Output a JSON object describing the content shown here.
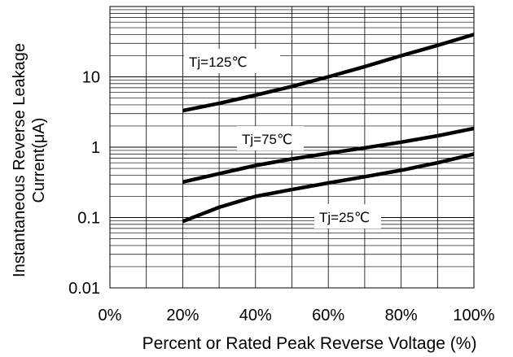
{
  "chart_data": {
    "type": "line",
    "xlabel": "Percent or Rated Peak Reverse Voltage (%)",
    "ylabel_line1": "Instantaneous Reverse Leakage",
    "ylabel_line2": "Current(μA)",
    "xlim": [
      0,
      100
    ],
    "ylim": [
      0.01,
      100
    ],
    "y_scale": "log",
    "grid": true,
    "x_ticks": [
      {
        "value": 0,
        "label": "0%"
      },
      {
        "value": 20,
        "label": "20%"
      },
      {
        "value": 40,
        "label": "40%"
      },
      {
        "value": 60,
        "label": "60%"
      },
      {
        "value": 80,
        "label": "80%"
      },
      {
        "value": 100,
        "label": "100%"
      }
    ],
    "y_ticks": [
      {
        "value": 0.01,
        "label": "0.01"
      },
      {
        "value": 0.1,
        "label": "0.1"
      },
      {
        "value": 1,
        "label": "1"
      },
      {
        "value": 10,
        "label": "10"
      }
    ],
    "series": [
      {
        "name": "Tj=125℃",
        "x": [
          20,
          30,
          40,
          50,
          60,
          70,
          80,
          90,
          100
        ],
        "y": [
          3.3,
          4.2,
          5.5,
          7.3,
          10,
          14,
          20,
          28,
          40
        ]
      },
      {
        "name": "Tj=75℃",
        "x": [
          20,
          30,
          40,
          50,
          60,
          70,
          80,
          90,
          100
        ],
        "y": [
          0.32,
          0.42,
          0.55,
          0.68,
          0.82,
          0.98,
          1.18,
          1.45,
          1.85
        ]
      },
      {
        "name": "Tj=25℃",
        "x": [
          20,
          30,
          40,
          50,
          60,
          70,
          80,
          90,
          100
        ],
        "y": [
          0.088,
          0.14,
          0.2,
          0.25,
          0.31,
          0.38,
          0.47,
          0.6,
          0.8
        ]
      }
    ],
    "line_color": "#000000",
    "grid_color": "#000000"
  }
}
